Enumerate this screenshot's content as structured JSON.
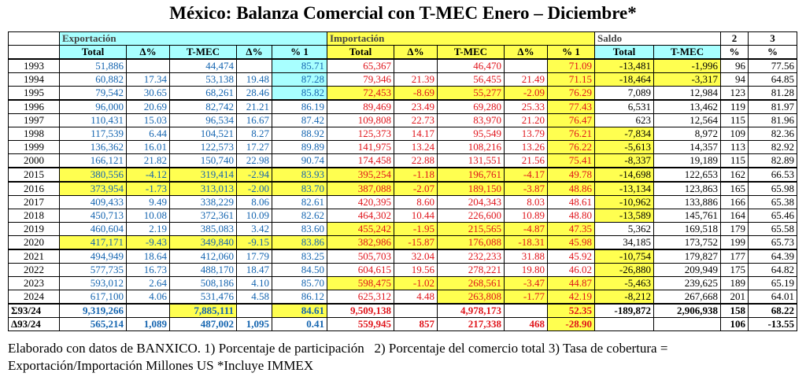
{
  "title": "México: Balanza Comercial con T-MEC Enero – Diciembre*",
  "table": {
    "header_groups": [
      "Exportación",
      "Importación",
      "Saldo",
      "2",
      "3"
    ],
    "columns": [
      null,
      "Total",
      "Δ%",
      "T-MEC",
      "Δ%",
      "% 1",
      "Total",
      "Δ%",
      "T-MEC",
      "Δ%",
      "% 1",
      "Total",
      "T-MEC",
      "%",
      "%"
    ],
    "rows": [
      [
        "1993",
        "51,886",
        null,
        "44,474",
        null,
        "85.71",
        "65,367",
        null,
        "46,470",
        null,
        "71.09",
        "-13,481",
        "-1,996",
        "96",
        "77.56"
      ],
      [
        "1994",
        "60,882",
        "17.34",
        "53,138",
        "19.48",
        "87.28",
        "79,346",
        "21.39",
        "56,455",
        "21.49",
        "71.15",
        "-18,464",
        "-3,317",
        "94",
        "64.85"
      ],
      [
        "1995",
        "79,542",
        "30.65",
        "68,261",
        "28.46",
        "85.82",
        "72,453",
        "-8.69",
        "55,277",
        "-2.09",
        "76.29",
        "7,089",
        "12,984",
        "123",
        "81.28"
      ],
      [
        "1996",
        "96,000",
        "20.69",
        "82,742",
        "21.21",
        "86.19",
        "89,469",
        "23.49",
        "69,280",
        "25.33",
        "77.43",
        "6,531",
        "13,462",
        "119",
        "81.97"
      ],
      [
        "1997",
        "110,431",
        "15.03",
        "96,534",
        "16.67",
        "87.42",
        "109,808",
        "22.73",
        "83,970",
        "21.20",
        "76.47",
        "623",
        "12,564",
        "115",
        "81.96"
      ],
      [
        "1998",
        "117,539",
        "6.44",
        "104,521",
        "8.27",
        "88.92",
        "125,373",
        "14.17",
        "95,549",
        "13.79",
        "76.21",
        "-7,834",
        "8,972",
        "109",
        "82.36"
      ],
      [
        "1999",
        "136,362",
        "16.01",
        "122,573",
        "17.27",
        "89.89",
        "141,975",
        "13.24",
        "108,216",
        "13.26",
        "76.22",
        "-5,613",
        "14,357",
        "113",
        "82.92"
      ],
      [
        "2000",
        "166,121",
        "21.82",
        "150,740",
        "22.98",
        "90.74",
        "174,458",
        "22.88",
        "131,551",
        "21.56",
        "75.41",
        "-8,337",
        "19,189",
        "115",
        "82.89"
      ],
      [
        "2015",
        "380,556",
        "-4.12",
        "319,414",
        "-2.94",
        "83.93",
        "395,254",
        "-1.18",
        "196,761",
        "-4.17",
        "49.78",
        "-14,698",
        "122,653",
        "162",
        "66.53"
      ],
      [
        "2016",
        "373,954",
        "-1.73",
        "313,013",
        "-2.00",
        "83.70",
        "387,088",
        "-2.07",
        "189,150",
        "-3.87",
        "48.86",
        "-13,134",
        "123,863",
        "165",
        "65.98"
      ],
      [
        "2017",
        "409,433",
        "9.49",
        "338,229",
        "8.06",
        "82.61",
        "420,395",
        "8.60",
        "204,343",
        "8.03",
        "48.61",
        "-10,962",
        "133,886",
        "166",
        "65.38"
      ],
      [
        "2018",
        "450,713",
        "10.08",
        "372,361",
        "10.09",
        "82.62",
        "464,302",
        "10.44",
        "226,600",
        "10.89",
        "48.80",
        "-13,589",
        "145,761",
        "164",
        "65.46"
      ],
      [
        "2019",
        "460,604",
        "2.19",
        "385,083",
        "3.42",
        "83.60",
        "455,242",
        "-1.95",
        "215,565",
        "-4.87",
        "47.35",
        "5,362",
        "169,518",
        "179",
        "65.58"
      ],
      [
        "2020",
        "417,171",
        "-9.43",
        "349,840",
        "-9.15",
        "83.86",
        "382,986",
        "-15.87",
        "176,088",
        "-18.31",
        "45.98",
        "34,185",
        "173,752",
        "199",
        "65.73"
      ],
      [
        "2021",
        "494,949",
        "18.64",
        "412,060",
        "17.79",
        "83.25",
        "505,703",
        "32.04",
        "232,233",
        "31.88",
        "45.92",
        "-10,754",
        "179,827",
        "177",
        "64.39"
      ],
      [
        "2022",
        "577,735",
        "16.73",
        "488,170",
        "18.47",
        "84.50",
        "604,615",
        "19.56",
        "278,221",
        "19.80",
        "46.02",
        "-26,880",
        "209,949",
        "175",
        "64.82"
      ],
      [
        "2023",
        "593,012",
        "2.64",
        "508,186",
        "4.10",
        "85.70",
        "598,475",
        "-1.02",
        "268,561",
        "-3.47",
        "44.87",
        "-5,463",
        "239,625",
        "189",
        "65.19"
      ],
      [
        "2024",
        "617,100",
        "4.06",
        "531,476",
        "4.58",
        "86.12",
        "625,312",
        "4.48",
        "263,808",
        "-1.77",
        "42.19",
        "-8,212",
        "267,668",
        "201",
        "64.01"
      ],
      [
        "Σ93/24",
        "9,319,266",
        null,
        "7,885,111",
        null,
        "84.61",
        "9,509,138",
        null,
        "4,978,173",
        null,
        "52.35",
        "-189,872",
        "2,906,938",
        "158",
        "68.22"
      ],
      [
        "Δ93/24",
        "565,214",
        "1,089",
        "487,002",
        "1,095",
        "0.41",
        "559,945",
        "857",
        "217,338",
        "468",
        "-28.90",
        null,
        null,
        "106",
        "-13.55"
      ]
    ]
  },
  "footnote": "Elaborado con datos de BANXICO. 1) Porcentaje de participación   2) Porcentaje del comercio total 3) Tasa de cobertura = Exportación/Importación Millones US *Incluye IMMEX"
}
